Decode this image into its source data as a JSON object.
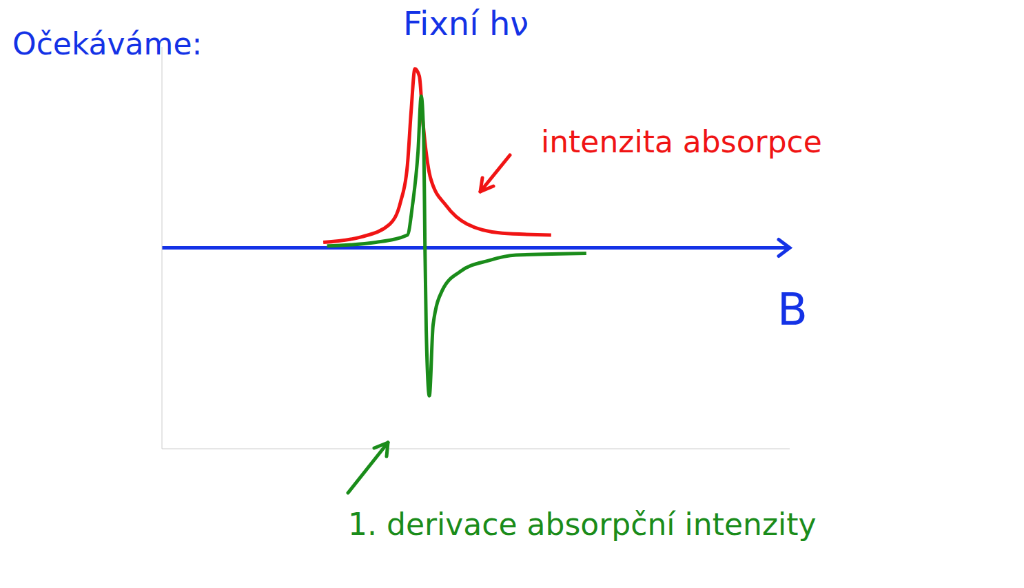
{
  "chart_data": {
    "type": "line",
    "title": "Očekáváme:",
    "subtitle": "Fixní hν",
    "x_label": "B",
    "xlim": [
      0,
      100
    ],
    "ylim": [
      -1.1,
      1.1
    ],
    "tick_labels": false,
    "series": [
      {
        "name": "intenzita absorpce",
        "color": "#f01414",
        "x": [
          25.7,
          31.8,
          36.3,
          38.0,
          39.1,
          39.7,
          40.3,
          41.0,
          41.6,
          42.8,
          45.3,
          48.6,
          54.2,
          62.0
        ],
        "values": [
          0.03,
          0.06,
          0.13,
          0.25,
          0.45,
          0.75,
          0.98,
          0.94,
          0.68,
          0.38,
          0.23,
          0.13,
          0.08,
          0.07
        ]
      },
      {
        "name": "1. derivace absorpční intenzity",
        "color": "#1a8c1a",
        "x": [
          26.3,
          34.1,
          39.1,
          39.9,
          40.8,
          41.3,
          41.7,
          41.9,
          42.1,
          42.6,
          43.2,
          44.7,
          47.5,
          52.0,
          56.4,
          67.6
        ],
        "values": [
          0.01,
          0.03,
          0.07,
          0.23,
          0.53,
          0.83,
          0.6,
          0.0,
          -0.45,
          -0.81,
          -0.42,
          -0.23,
          -0.13,
          -0.07,
          -0.04,
          -0.03
        ]
      }
    ]
  }
}
